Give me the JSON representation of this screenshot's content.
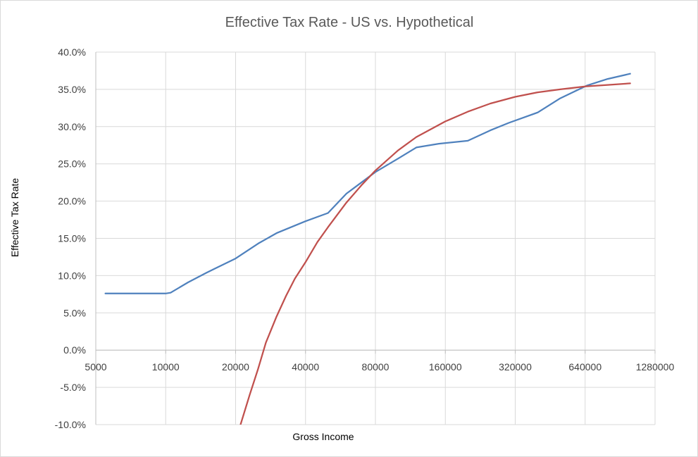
{
  "chart_data": {
    "type": "line",
    "title": "Effective Tax Rate - US vs. Hypothetical",
    "xlabel": "Gross Income",
    "ylabel": "Effective Tax Rate",
    "x_scale": "log2",
    "xlim": [
      5000,
      1280000
    ],
    "ylim": [
      -0.1,
      0.4
    ],
    "x_ticks": [
      5000,
      10000,
      20000,
      40000,
      80000,
      160000,
      320000,
      640000,
      1280000
    ],
    "x_tick_labels": [
      "5000",
      "10000",
      "20000",
      "40000",
      "80000",
      "160000",
      "320000",
      "640000",
      "1280000"
    ],
    "y_ticks": [
      -0.1,
      -0.05,
      0.0,
      0.05,
      0.1,
      0.15,
      0.2,
      0.25,
      0.3,
      0.35,
      0.4
    ],
    "y_tick_labels": [
      "-10.0%",
      "-5.0%",
      "0.0%",
      "5.0%",
      "10.0%",
      "15.0%",
      "20.0%",
      "25.0%",
      "30.0%",
      "35.0%",
      "40.0%"
    ],
    "grid": true,
    "legend": "none",
    "series": [
      {
        "name": "US",
        "color": "#4f81bd",
        "x": [
          5500,
          10000,
          10500,
          12500,
          15000,
          20000,
          25000,
          30000,
          40000,
          50000,
          60000,
          80000,
          100000,
          120000,
          150000,
          200000,
          250000,
          300000,
          400000,
          500000,
          650000,
          800000,
          1000000
        ],
        "y": [
          0.076,
          0.076,
          0.077,
          0.091,
          0.104,
          0.123,
          0.143,
          0.157,
          0.173,
          0.184,
          0.21,
          0.239,
          0.257,
          0.272,
          0.277,
          0.281,
          0.295,
          0.305,
          0.319,
          0.338,
          0.355,
          0.364,
          0.371
        ]
      },
      {
        "name": "Hypothetical",
        "color": "#c0504d",
        "x": [
          21000,
          23000,
          25000,
          27000,
          30000,
          33000,
          36000,
          40000,
          45000,
          50000,
          60000,
          70000,
          80000,
          100000,
          120000,
          160000,
          200000,
          250000,
          320000,
          400000,
          500000,
          640000,
          800000,
          1000000
        ],
        "y": [
          -0.1,
          -0.06,
          -0.025,
          0.01,
          0.045,
          0.073,
          0.096,
          0.118,
          0.145,
          0.165,
          0.198,
          0.222,
          0.241,
          0.268,
          0.286,
          0.307,
          0.32,
          0.331,
          0.34,
          0.346,
          0.35,
          0.354,
          0.356,
          0.358
        ]
      }
    ]
  }
}
